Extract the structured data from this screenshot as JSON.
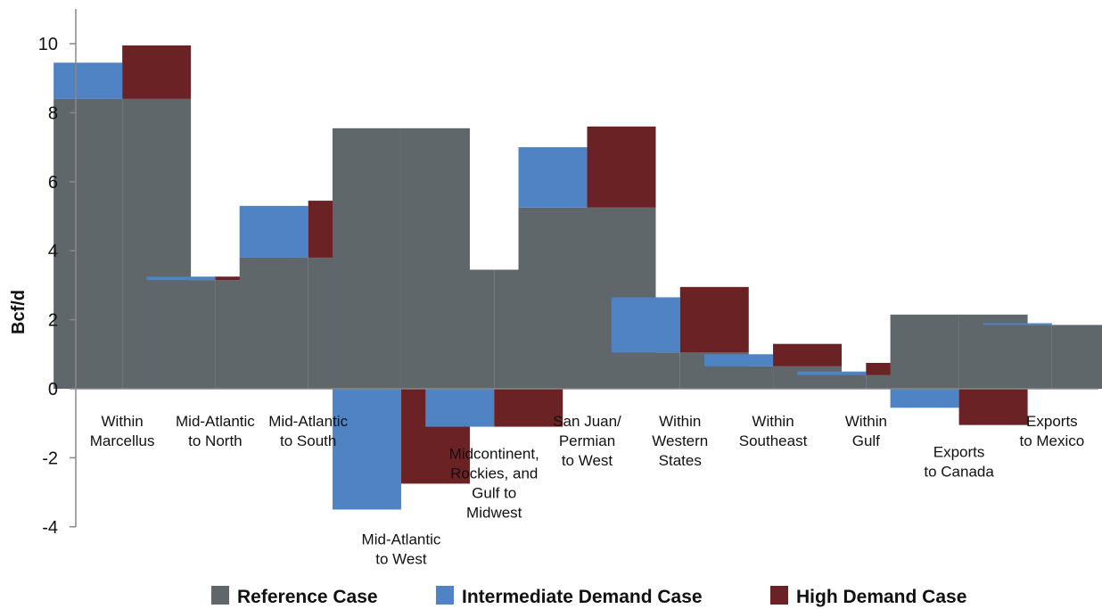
{
  "chart_data": {
    "type": "bar",
    "stacked_overlay": true,
    "ylabel": "Bcf/d",
    "ylim": [
      -4,
      10
    ],
    "yticks": [
      -4,
      -2,
      0,
      2,
      4,
      6,
      8,
      10
    ],
    "grid": false,
    "legend_position": "bottom",
    "categories": [
      "Within Marcellus",
      "Mid-Atlantic to North",
      "Mid-Atlantic to South",
      "Mid-Atlantic to West",
      "Midcontinent, Rockies, and Gulf to Midwest",
      "San Juan/ Permian to West",
      "Within Western States",
      "Within Southeast",
      "Within Gulf",
      "Exports to Canada",
      "Exports to Mexico"
    ],
    "category_label_lines": [
      [
        "Within",
        "Marcellus"
      ],
      [
        "Mid-Atlantic",
        "to North"
      ],
      [
        "Mid-Atlantic",
        "to South"
      ],
      [
        "Mid-Atlantic",
        "to West"
      ],
      [
        "Midcontinent,",
        "Rockies, and",
        "Gulf to",
        "Midwest"
      ],
      [
        "San Juan/",
        "Permian",
        "to West"
      ],
      [
        "Within",
        "Western",
        "States"
      ],
      [
        "Within",
        "Southeast"
      ],
      [
        "Within",
        "Gulf"
      ],
      [
        "Exports",
        "to Canada"
      ],
      [
        "Exports",
        "to Mexico"
      ]
    ],
    "series": [
      {
        "name": "Reference Case",
        "color": "#5f676b",
        "values": [
          8.4,
          3.15,
          3.8,
          7.55,
          3.45,
          5.25,
          1.05,
          0.65,
          0.4,
          2.15,
          1.85
        ]
      },
      {
        "name": "Intermediate Demand Case",
        "color": "#4f83c3",
        "values": [
          9.45,
          3.25,
          5.3,
          -3.5,
          -1.1,
          7.0,
          2.65,
          1.0,
          0.5,
          -0.55,
          1.9
        ]
      },
      {
        "name": "High Demand Case",
        "color": "#6b2224",
        "values": [
          9.95,
          3.25,
          5.45,
          -2.75,
          -1.1,
          7.6,
          2.95,
          1.3,
          0.75,
          -1.05,
          1.85
        ]
      }
    ]
  }
}
